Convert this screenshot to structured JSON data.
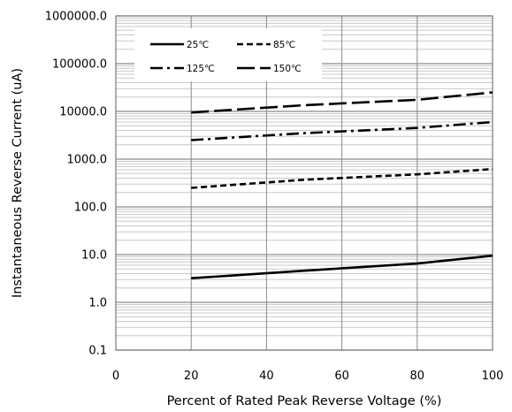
{
  "chart_data": {
    "type": "line",
    "xlabel": "Percent of  Rated Peak Reverse Voltage (%)",
    "ylabel": "Instantaneous Reverse Current (uA)",
    "xlim": [
      0,
      100
    ],
    "ylim": [
      0.1,
      1000000
    ],
    "y_scale": "log",
    "x_ticks": [
      "0",
      "20",
      "40",
      "60",
      "80",
      "100"
    ],
    "y_ticks": [
      "0.1",
      "1.0",
      "10.0",
      "100.0",
      "1000.0",
      "10000.0",
      "100000.0",
      "1000000.0"
    ],
    "grid": true,
    "legend_position": "top-left",
    "series": [
      {
        "name": "25℃",
        "style": "solid",
        "color": "#000000",
        "x": [
          20,
          50,
          80,
          100
        ],
        "y": [
          3.2,
          4.6,
          6.5,
          9.5
        ]
      },
      {
        "name": "85℃",
        "style": "dashed",
        "color": "#000000",
        "x": [
          20,
          50,
          80,
          100
        ],
        "y": [
          250,
          370,
          480,
          620
        ]
      },
      {
        "name": "125℃",
        "style": "dashdot",
        "color": "#000000",
        "x": [
          20,
          50,
          80,
          100
        ],
        "y": [
          2500,
          3500,
          4500,
          6000
        ]
      },
      {
        "name": "150℃",
        "style": "longdash",
        "color": "#000000",
        "x": [
          20,
          50,
          80,
          100
        ],
        "y": [
          9500,
          13500,
          17500,
          25000
        ]
      }
    ]
  }
}
